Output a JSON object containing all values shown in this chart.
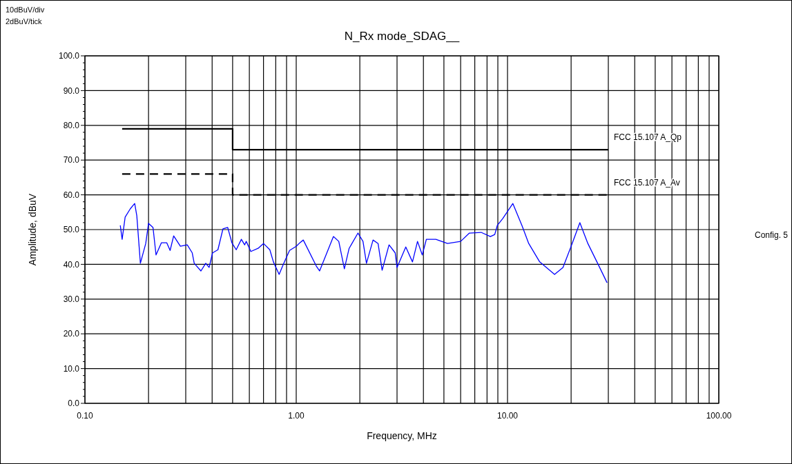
{
  "chart_data": {
    "type": "line",
    "title": "N_Rx mode_SDAG__",
    "xlabel": "Frequency, MHz",
    "ylabel": "Amplitude, dBuV",
    "log": "x",
    "grid": true,
    "xlim": [
      0.1,
      100
    ],
    "ylim": [
      0,
      100
    ],
    "xticks": [
      {
        "value": 0.1,
        "label": "0.10"
      },
      {
        "value": 0.2,
        "label": null
      },
      {
        "value": 0.3,
        "label": null
      },
      {
        "value": 0.4,
        "label": null
      },
      {
        "value": 0.5,
        "label": null
      },
      {
        "value": 0.6,
        "label": null
      },
      {
        "value": 0.7,
        "label": null
      },
      {
        "value": 0.8,
        "label": null
      },
      {
        "value": 0.9,
        "label": null
      },
      {
        "value": 1,
        "label": "1.00"
      },
      {
        "value": 2,
        "label": null
      },
      {
        "value": 3,
        "label": null
      },
      {
        "value": 4,
        "label": null
      },
      {
        "value": 5,
        "label": null
      },
      {
        "value": 6,
        "label": null
      },
      {
        "value": 7,
        "label": null
      },
      {
        "value": 8,
        "label": null
      },
      {
        "value": 9,
        "label": null
      },
      {
        "value": 10,
        "label": "10.00"
      },
      {
        "value": 20,
        "label": null
      },
      {
        "value": 30,
        "label": null
      },
      {
        "value": 40,
        "label": null
      },
      {
        "value": 50,
        "label": null
      },
      {
        "value": 60,
        "label": null
      },
      {
        "value": 70,
        "label": null
      },
      {
        "value": 80,
        "label": null
      },
      {
        "value": 90,
        "label": null
      },
      {
        "value": 100,
        "label": "100.00"
      }
    ],
    "yticks": [
      {
        "value": 0,
        "label": "0.0"
      },
      {
        "value": 2,
        "label": null
      },
      {
        "value": 4,
        "label": null
      },
      {
        "value": 6,
        "label": null
      },
      {
        "value": 8,
        "label": null
      },
      {
        "value": 10,
        "label": "10.0"
      },
      {
        "value": 12,
        "label": null
      },
      {
        "value": 14,
        "label": null
      },
      {
        "value": 16,
        "label": null
      },
      {
        "value": 18,
        "label": null
      },
      {
        "value": 20,
        "label": "20.0"
      },
      {
        "value": 22,
        "label": null
      },
      {
        "value": 24,
        "label": null
      },
      {
        "value": 26,
        "label": null
      },
      {
        "value": 28,
        "label": null
      },
      {
        "value": 30,
        "label": "30.0"
      },
      {
        "value": 32,
        "label": null
      },
      {
        "value": 34,
        "label": null
      },
      {
        "value": 36,
        "label": null
      },
      {
        "value": 38,
        "label": null
      },
      {
        "value": 40,
        "label": "40.0"
      },
      {
        "value": 42,
        "label": null
      },
      {
        "value": 44,
        "label": null
      },
      {
        "value": 46,
        "label": null
      },
      {
        "value": 48,
        "label": null
      },
      {
        "value": 50,
        "label": "50.0"
      },
      {
        "value": 52,
        "label": null
      },
      {
        "value": 54,
        "label": null
      },
      {
        "value": 56,
        "label": null
      },
      {
        "value": 58,
        "label": null
      },
      {
        "value": 60,
        "label": "60.0"
      },
      {
        "value": 62,
        "label": null
      },
      {
        "value": 64,
        "label": null
      },
      {
        "value": 66,
        "label": null
      },
      {
        "value": 68,
        "label": null
      },
      {
        "value": 70,
        "label": "70.0"
      },
      {
        "value": 72,
        "label": null
      },
      {
        "value": 74,
        "label": null
      },
      {
        "value": 76,
        "label": null
      },
      {
        "value": 78,
        "label": null
      },
      {
        "value": 80,
        "label": "80.0"
      },
      {
        "value": 82,
        "label": null
      },
      {
        "value": 84,
        "label": null
      },
      {
        "value": 86,
        "label": null
      },
      {
        "value": 88,
        "label": null
      },
      {
        "value": 90,
        "label": "90.0"
      },
      {
        "value": 92,
        "label": null
      },
      {
        "value": 94,
        "label": null
      },
      {
        "value": 96,
        "label": null
      },
      {
        "value": 98,
        "label": null
      },
      {
        "value": 100,
        "label": "100.0"
      }
    ],
    "annotations": [
      "10dBuV/div",
      "2dBuV/tick",
      "Config. 5"
    ],
    "series": [
      {
        "name": "FCC 15.107 A_Qp",
        "type": "step",
        "color": "#000000",
        "line_style": "solid",
        "x": [
          0.15,
          0.5,
          30
        ],
        "values": [
          79,
          73,
          73
        ]
      },
      {
        "name": "FCC 15.107 A_Av",
        "type": "step",
        "color": "#000000",
        "line_style": "dashed",
        "x": [
          0.15,
          0.5,
          30
        ],
        "values": [
          66,
          60,
          60
        ]
      },
      {
        "color": "#0000ff",
        "line_style": "solid",
        "x": [
          0.147,
          0.15,
          0.155,
          0.164,
          0.172,
          0.176,
          0.183,
          0.194,
          0.2,
          0.21,
          0.217,
          0.23,
          0.244,
          0.253,
          0.263,
          0.283,
          0.305,
          0.322,
          0.329,
          0.354,
          0.373,
          0.387,
          0.402,
          0.426,
          0.45,
          0.474,
          0.496,
          0.52,
          0.55,
          0.57,
          0.58,
          0.61,
          0.66,
          0.7,
          0.75,
          0.78,
          0.83,
          0.87,
          0.93,
          1.0,
          1.04,
          1.08,
          1.25,
          1.29,
          1.5,
          1.59,
          1.69,
          1.78,
          1.96,
          2.07,
          2.15,
          2.31,
          2.44,
          2.55,
          2.75,
          2.94,
          3.0,
          3.3,
          3.55,
          3.75,
          3.95,
          4.13,
          4.58,
          5.2,
          6.0,
          6.6,
          7.5,
          8.3,
          8.7,
          8.95,
          9.5,
          10.6,
          11.7,
          12.6,
          14.2,
          16.7,
          18.3,
          20,
          22,
          24,
          26.5,
          29.6
        ],
        "values": [
          51.2,
          47.2,
          53.6,
          56,
          57.5,
          54,
          40.3,
          46,
          51.8,
          50.6,
          42.7,
          46.2,
          46.2,
          44,
          48.2,
          45.2,
          45.6,
          43.3,
          40.3,
          38.1,
          40.3,
          39.1,
          43.3,
          44.2,
          50.2,
          50.6,
          46.2,
          44.2,
          47.2,
          45.6,
          46.6,
          43.7,
          44.6,
          46,
          44.2,
          40.7,
          37.1,
          40.1,
          44,
          45.2,
          46.2,
          47,
          39.3,
          38.1,
          48,
          46.6,
          38.7,
          44.6,
          49,
          46.6,
          40.3,
          47,
          46,
          38.3,
          45.6,
          43.3,
          39.1,
          45,
          40.7,
          46.6,
          42.7,
          47.2,
          47.2,
          46,
          46.6,
          49,
          49.2,
          48,
          48.6,
          51.2,
          53.2,
          57.5,
          51.2,
          46,
          40.7,
          37.1,
          39.1,
          45.2,
          52,
          46,
          40.7,
          34.7
        ]
      }
    ]
  }
}
